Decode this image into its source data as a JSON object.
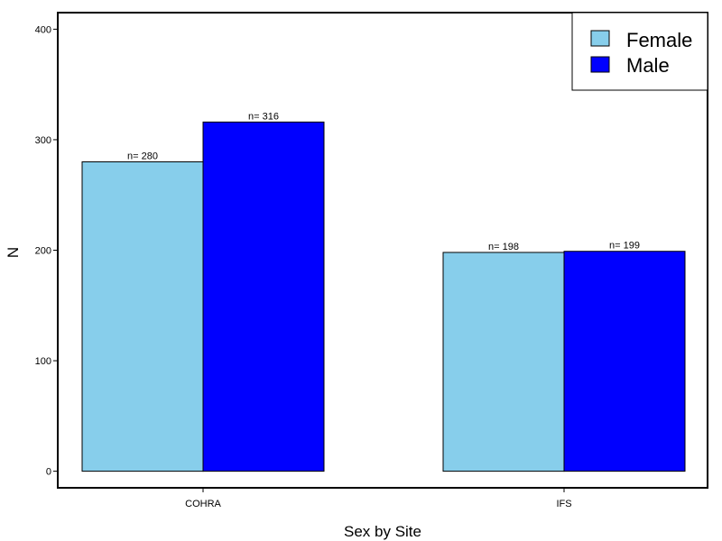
{
  "chart_data": {
    "type": "bar",
    "title": "",
    "xlabel": "Sex by Site",
    "ylabel": "N",
    "categories": [
      "COHRA",
      "IFS"
    ],
    "series": [
      {
        "name": "Female",
        "color": "#87CEEB",
        "values": [
          280,
          198
        ],
        "labels": [
          "n= 280",
          "n= 198"
        ]
      },
      {
        "name": "Male",
        "color": "#0000FF",
        "values": [
          316,
          199
        ],
        "labels": [
          "n= 316",
          "n= 199"
        ]
      }
    ],
    "ylim": [
      -15,
      415
    ],
    "yticks": [
      0,
      100,
      200,
      300,
      400
    ],
    "ytick_labels": [
      "0",
      "100",
      "200",
      "300",
      "400"
    ],
    "grid": false,
    "legend_position": "top-right"
  }
}
